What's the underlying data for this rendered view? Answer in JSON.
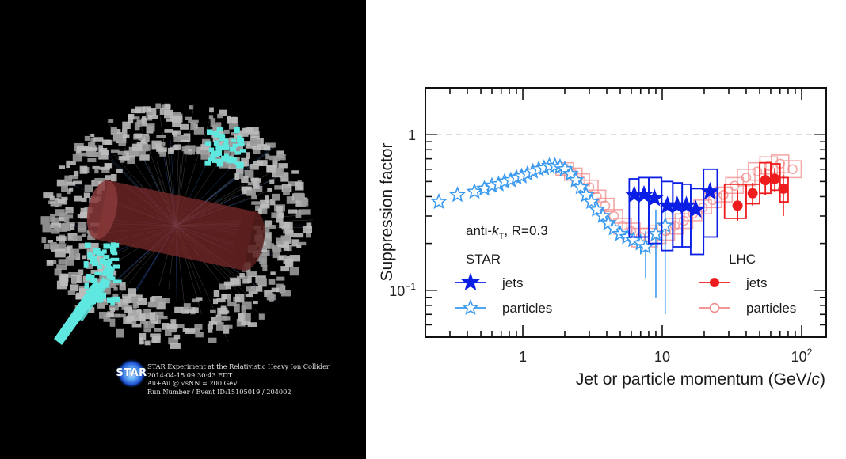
{
  "event_display": {
    "caption_lines": [
      "STAR Experiment at the Relativistic Heavy Ion Collider",
      "2014-04-15 09:30:43 EDT",
      "Au+Au @ √sNN = 200 GeV",
      "Run Number / Event ID:15105019 / 204002"
    ],
    "logo_text": "STAR",
    "colors": {
      "background": "#000000",
      "towers": "#9a9a9a",
      "jet_towers": "#5fe8e0",
      "tpc_cylinder": "#7a2a2a",
      "tracks": "#3a6fd8"
    }
  },
  "chart_data": {
    "type": "scatter",
    "xscale": "log",
    "yscale": "log",
    "xlabel": "Jet or particle momentum (GeV/c)",
    "ylabel": "Suppression factor",
    "xlim": [
      0.2,
      150
    ],
    "ylim": [
      0.05,
      2.0
    ],
    "x_ticks": [
      {
        "value": 1,
        "label": "1"
      },
      {
        "value": 10,
        "label": "10"
      },
      {
        "value": 100,
        "label": "10",
        "sup": "2"
      }
    ],
    "y_ticks": [
      {
        "value": 1,
        "label": "1"
      },
      {
        "value": 0.1,
        "label": "10",
        "sup": "−1"
      }
    ],
    "reference_line": {
      "y": 1,
      "style": "dashed",
      "color": "#bbbbbb"
    },
    "annotation": {
      "prefix": "anti-",
      "k": "k",
      "sub": "T",
      "suffix": ", R=0.3"
    },
    "legend": [
      {
        "group": "STAR",
        "placement": "lower-left",
        "entries": [
          {
            "label": "jets",
            "series": "star_jets"
          },
          {
            "label": "particles",
            "series": "star_particles"
          }
        ]
      },
      {
        "group": "LHC",
        "placement": "lower-right",
        "entries": [
          {
            "label": "jets",
            "series": "lhc_jets"
          },
          {
            "label": "particles",
            "series": "lhc_particles"
          }
        ]
      }
    ],
    "series": [
      {
        "id": "star_particles",
        "name": "STAR particles",
        "marker": "open-star",
        "color": "#3a9af0",
        "x": [
          0.25,
          0.34,
          0.45,
          0.53,
          0.6,
          0.67,
          0.74,
          0.82,
          0.9,
          0.98,
          1.08,
          1.18,
          1.3,
          1.42,
          1.55,
          1.7,
          1.85,
          2.0,
          2.2,
          2.4,
          2.6,
          2.85,
          3.1,
          3.4,
          3.75,
          4.1,
          4.5,
          5.0,
          5.6,
          6.2,
          7.0,
          7.6,
          9.0,
          10.5
        ],
        "y": [
          0.37,
          0.41,
          0.43,
          0.45,
          0.47,
          0.48,
          0.5,
          0.51,
          0.53,
          0.54,
          0.56,
          0.58,
          0.6,
          0.61,
          0.63,
          0.63,
          0.62,
          0.6,
          0.56,
          0.51,
          0.46,
          0.41,
          0.37,
          0.33,
          0.3,
          0.27,
          0.25,
          0.23,
          0.22,
          0.21,
          0.2,
          0.19,
          0.23,
          0.26
        ],
        "yerr_low": [
          0,
          0,
          0,
          0,
          0,
          0,
          0,
          0,
          0,
          0,
          0,
          0,
          0,
          0,
          0,
          0,
          0,
          0,
          0,
          0,
          0,
          0,
          0,
          0,
          0,
          0,
          0,
          0,
          0,
          0,
          0.03,
          0.07,
          0.14,
          0.19
        ],
        "yerr_high": [
          0,
          0,
          0,
          0,
          0,
          0,
          0,
          0,
          0,
          0,
          0,
          0,
          0,
          0,
          0,
          0,
          0,
          0,
          0,
          0,
          0,
          0,
          0,
          0,
          0,
          0,
          0,
          0,
          0,
          0,
          0.03,
          0.05,
          0.1,
          0.12
        ]
      },
      {
        "id": "star_jets",
        "name": "STAR jets",
        "marker": "filled-star",
        "color": "#0a1ee6",
        "x": [
          6.3,
          7.4,
          8.8,
          10.9,
          12.8,
          14.9,
          17.4,
          22.0
        ],
        "y": [
          0.41,
          0.41,
          0.39,
          0.35,
          0.35,
          0.35,
          0.33,
          0.43
        ],
        "x_bins": [
          [
            5.8,
            6.8
          ],
          [
            6.8,
            8.0
          ],
          [
            8.0,
            9.9
          ],
          [
            9.9,
            11.9
          ],
          [
            11.9,
            13.9
          ],
          [
            13.9,
            16.0
          ],
          [
            16.0,
            19.8
          ],
          [
            19.8,
            24.8
          ]
        ],
        "sys_low": [
          0.22,
          0.22,
          0.2,
          0.18,
          0.19,
          0.19,
          0.17,
          0.22
        ],
        "sys_high": [
          0.52,
          0.53,
          0.53,
          0.5,
          0.49,
          0.48,
          0.45,
          0.6
        ]
      },
      {
        "id": "lhc_particles",
        "name": "LHC particles",
        "marker": "open-circle",
        "color": "#f08a8a",
        "x": [
          2.0,
          2.3,
          2.6,
          3.0,
          3.4,
          3.9,
          4.5,
          5.2,
          6.0,
          7.0,
          8.0,
          9.2,
          10.6,
          12.3,
          14.3,
          16.6,
          19.5,
          23.0,
          27.5,
          33.0,
          40.0,
          48.0,
          58.0,
          70.0,
          86.0
        ],
        "y": [
          0.6,
          0.56,
          0.51,
          0.46,
          0.4,
          0.35,
          0.3,
          0.26,
          0.24,
          0.22,
          0.22,
          0.23,
          0.24,
          0.26,
          0.28,
          0.31,
          0.34,
          0.38,
          0.41,
          0.47,
          0.53,
          0.58,
          0.63,
          0.65,
          0.6
        ],
        "sys_low": [
          0.55,
          0.51,
          0.47,
          0.42,
          0.37,
          0.32,
          0.27,
          0.23,
          0.21,
          0.19,
          0.19,
          0.2,
          0.21,
          0.23,
          0.25,
          0.28,
          0.31,
          0.34,
          0.37,
          0.42,
          0.47,
          0.51,
          0.56,
          0.57,
          0.53
        ],
        "sys_high": [
          0.66,
          0.61,
          0.56,
          0.51,
          0.44,
          0.39,
          0.33,
          0.29,
          0.27,
          0.25,
          0.25,
          0.26,
          0.27,
          0.29,
          0.31,
          0.34,
          0.38,
          0.42,
          0.46,
          0.53,
          0.6,
          0.66,
          0.72,
          0.74,
          0.68
        ]
      },
      {
        "id": "lhc_jets",
        "name": "LHC jets",
        "marker": "filled-circle",
        "color": "#ee1c1c",
        "x": [
          34.7,
          44.5,
          54.9,
          64.2,
          73.9
        ],
        "y": [
          0.35,
          0.42,
          0.51,
          0.52,
          0.45
        ],
        "x_bins": [
          [
            28.0,
            40.0
          ],
          [
            40.0,
            50.0
          ],
          [
            50.0,
            60.0
          ],
          [
            60.0,
            70.0
          ],
          [
            70.0,
            80.0
          ]
        ],
        "stat_low": [
          0.28,
          0.35,
          0.41,
          0.43,
          0.3
        ],
        "stat_high": [
          0.44,
          0.49,
          0.61,
          0.61,
          0.55
        ],
        "sys_low": [
          0.29,
          0.36,
          0.42,
          0.44,
          0.37
        ],
        "sys_high": [
          0.48,
          0.48,
          0.66,
          0.65,
          0.53
        ]
      }
    ]
  }
}
